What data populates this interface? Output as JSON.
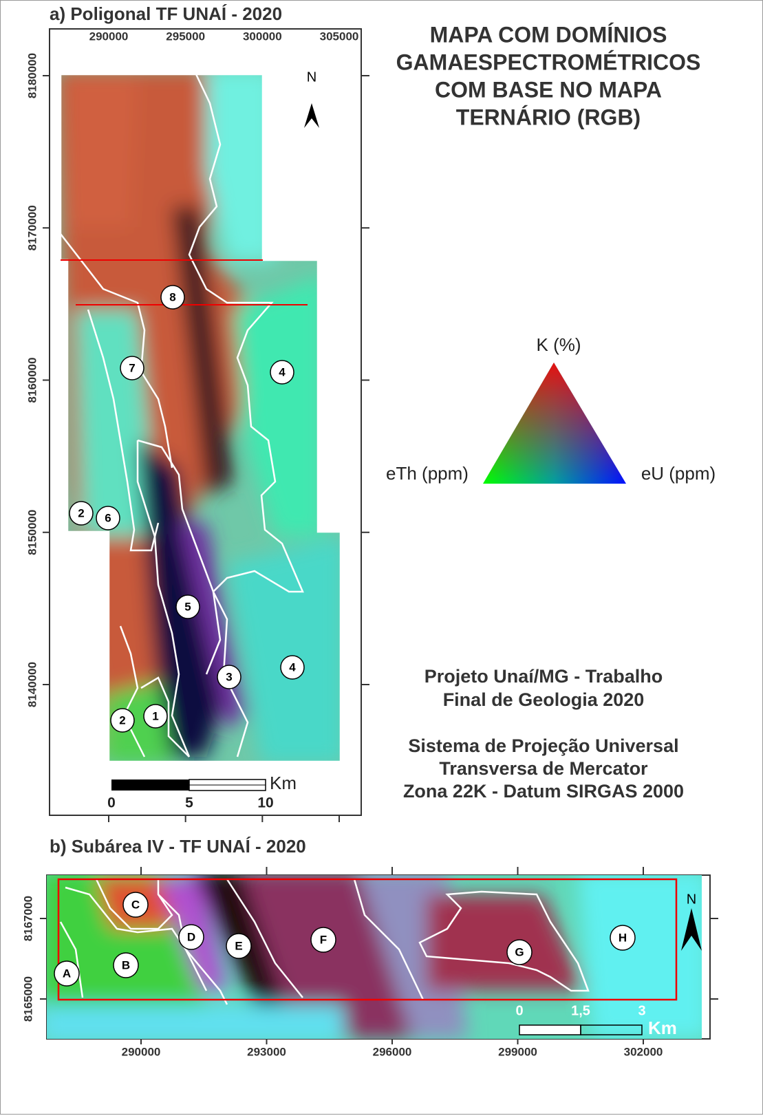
{
  "panel_a": {
    "title": "a) Poligonal TF UNAÍ - 2020",
    "x_ticks": [
      290000,
      295000,
      300000,
      305000
    ],
    "y_ticks": [
      8180000,
      8170000,
      8160000,
      8150000,
      8140000
    ],
    "north": "N",
    "domain_labels": [
      "8",
      "7",
      "4",
      "2",
      "6",
      "5",
      "4",
      "3",
      "2",
      "1"
    ],
    "scale_labels": [
      "0",
      "5",
      "10"
    ],
    "scale_unit": "Km"
  },
  "header": {
    "title_lines": [
      "MAPA COM DOMÍNIOS",
      "GAMAESPECTROMÉTRICOS",
      "COM BASE NO MAPA",
      "TERNÁRIO (RGB)"
    ]
  },
  "legend": {
    "apex": "K (%)",
    "left": "eTh (ppm)",
    "right": "eU (ppm)"
  },
  "notes": {
    "project_lines": [
      "Projeto Unaí/MG - Trabalho",
      "Final de Geologia 2020"
    ],
    "projection_lines": [
      "Sistema de Projeção Universal",
      "Transversa de Mercator",
      "Zona 22K - Datum SIRGAS 2000"
    ]
  },
  "panel_b": {
    "title": "b) Subárea IV - TF UNAÍ - 2020",
    "x_ticks": [
      290000,
      293000,
      296000,
      299000,
      302000
    ],
    "y_ticks": [
      8167000,
      8165000
    ],
    "north": "N",
    "domain_labels": [
      "A",
      "B",
      "C",
      "D",
      "E",
      "F",
      "G",
      "H"
    ],
    "scale_labels": [
      "0",
      "1,5",
      "3"
    ],
    "scale_unit": "Km"
  }
}
